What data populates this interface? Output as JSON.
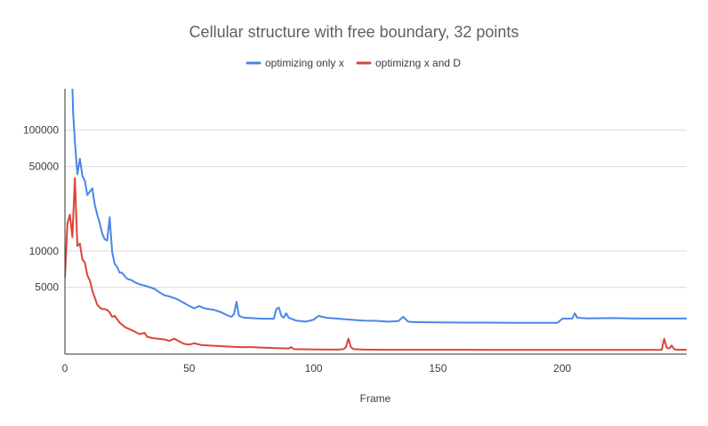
{
  "chart_data": {
    "type": "line",
    "title": "Cellular structure with free boundary, 32 points",
    "xlabel": "Frame",
    "ylabel": "",
    "y_scale": "log",
    "x_ticks": [
      0,
      50,
      100,
      150,
      200
    ],
    "y_ticks": [
      5000,
      10000,
      50000,
      100000
    ],
    "xlim": [
      0,
      250
    ],
    "grid": "horizontal",
    "legend_position": "top",
    "series": [
      {
        "name": "optimizing only x",
        "color": "#4a86e8",
        "points": [
          [
            3,
            230000
          ],
          [
            3.3,
            140000
          ],
          [
            4,
            80000
          ],
          [
            5,
            43000
          ],
          [
            6,
            58000
          ],
          [
            7,
            42000
          ],
          [
            8,
            38000
          ],
          [
            9,
            29000
          ],
          [
            10,
            31000
          ],
          [
            11,
            33000
          ],
          [
            12,
            24000
          ],
          [
            13,
            20000
          ],
          [
            14,
            17000
          ],
          [
            15,
            14000
          ],
          [
            16,
            12500
          ],
          [
            17,
            12200
          ],
          [
            18,
            19000
          ],
          [
            19,
            9800
          ],
          [
            20,
            7800
          ],
          [
            21,
            7400
          ],
          [
            22,
            6600
          ],
          [
            23,
            6600
          ],
          [
            24,
            6200
          ],
          [
            25,
            5900
          ],
          [
            27,
            5700
          ],
          [
            28,
            5500
          ],
          [
            30,
            5300
          ],
          [
            33,
            5100
          ],
          [
            36,
            4850
          ],
          [
            38,
            4550
          ],
          [
            40,
            4300
          ],
          [
            42,
            4200
          ],
          [
            45,
            4000
          ],
          [
            48,
            3700
          ],
          [
            50,
            3500
          ],
          [
            52,
            3350
          ],
          [
            54,
            3500
          ],
          [
            56,
            3350
          ],
          [
            60,
            3250
          ],
          [
            63,
            3100
          ],
          [
            65,
            2950
          ],
          [
            67,
            2850
          ],
          [
            68,
            3000
          ],
          [
            69,
            3800
          ],
          [
            70,
            2900
          ],
          [
            72,
            2800
          ],
          [
            75,
            2780
          ],
          [
            78,
            2760
          ],
          [
            80,
            2750
          ],
          [
            84,
            2750
          ],
          [
            85,
            3300
          ],
          [
            86,
            3400
          ],
          [
            87,
            2900
          ],
          [
            88,
            2800
          ],
          [
            89,
            3050
          ],
          [
            90,
            2800
          ],
          [
            93,
            2650
          ],
          [
            97,
            2600
          ],
          [
            100,
            2700
          ],
          [
            102,
            2900
          ],
          [
            105,
            2800
          ],
          [
            110,
            2750
          ],
          [
            115,
            2700
          ],
          [
            120,
            2650
          ],
          [
            125,
            2640
          ],
          [
            130,
            2600
          ],
          [
            134,
            2620
          ],
          [
            136,
            2850
          ],
          [
            138,
            2600
          ],
          [
            140,
            2580
          ],
          [
            150,
            2560
          ],
          [
            160,
            2550
          ],
          [
            170,
            2550
          ],
          [
            180,
            2540
          ],
          [
            190,
            2540
          ],
          [
            198,
            2540
          ],
          [
            200,
            2750
          ],
          [
            204,
            2760
          ],
          [
            205,
            3050
          ],
          [
            206,
            2800
          ],
          [
            210,
            2770
          ],
          [
            220,
            2780
          ],
          [
            230,
            2760
          ],
          [
            240,
            2760
          ],
          [
            250,
            2760
          ]
        ]
      },
      {
        "name": "optimizng x and D",
        "color": "#db4437",
        "points": [
          [
            0,
            6000
          ],
          [
            0.5,
            10000
          ],
          [
            1,
            17000
          ],
          [
            2,
            20000
          ],
          [
            3,
            13000
          ],
          [
            4,
            40000
          ],
          [
            5,
            11000
          ],
          [
            6,
            11500
          ],
          [
            7,
            8500
          ],
          [
            8,
            8000
          ],
          [
            9,
            6300
          ],
          [
            10,
            5700
          ],
          [
            11,
            4700
          ],
          [
            12,
            4100
          ],
          [
            13,
            3600
          ],
          [
            14,
            3400
          ],
          [
            15,
            3300
          ],
          [
            16,
            3300
          ],
          [
            17,
            3250
          ],
          [
            18,
            3100
          ],
          [
            19,
            2850
          ],
          [
            20,
            2900
          ],
          [
            22,
            2550
          ],
          [
            24,
            2350
          ],
          [
            26,
            2250
          ],
          [
            28,
            2150
          ],
          [
            30,
            2050
          ],
          [
            32,
            2100
          ],
          [
            33,
            1950
          ],
          [
            35,
            1900
          ],
          [
            38,
            1870
          ],
          [
            40,
            1850
          ],
          [
            42,
            1800
          ],
          [
            44,
            1880
          ],
          [
            46,
            1780
          ],
          [
            48,
            1700
          ],
          [
            50,
            1680
          ],
          [
            52,
            1720
          ],
          [
            55,
            1660
          ],
          [
            60,
            1640
          ],
          [
            65,
            1620
          ],
          [
            70,
            1600
          ],
          [
            75,
            1600
          ],
          [
            80,
            1580
          ],
          [
            85,
            1570
          ],
          [
            90,
            1560
          ],
          [
            91,
            1600
          ],
          [
            92,
            1540
          ],
          [
            100,
            1530
          ],
          [
            105,
            1525
          ],
          [
            110,
            1525
          ],
          [
            112,
            1540
          ],
          [
            113,
            1600
          ],
          [
            114,
            1880
          ],
          [
            115,
            1600
          ],
          [
            116,
            1540
          ],
          [
            120,
            1525
          ],
          [
            130,
            1520
          ],
          [
            140,
            1520
          ],
          [
            150,
            1520
          ],
          [
            160,
            1520
          ],
          [
            170,
            1518
          ],
          [
            180,
            1518
          ],
          [
            190,
            1518
          ],
          [
            200,
            1518
          ],
          [
            210,
            1518
          ],
          [
            220,
            1518
          ],
          [
            230,
            1518
          ],
          [
            240,
            1520
          ],
          [
            241,
            1880
          ],
          [
            242,
            1580
          ],
          [
            243,
            1560
          ],
          [
            244,
            1650
          ],
          [
            245,
            1540
          ],
          [
            246,
            1520
          ],
          [
            250,
            1520
          ]
        ]
      }
    ]
  }
}
